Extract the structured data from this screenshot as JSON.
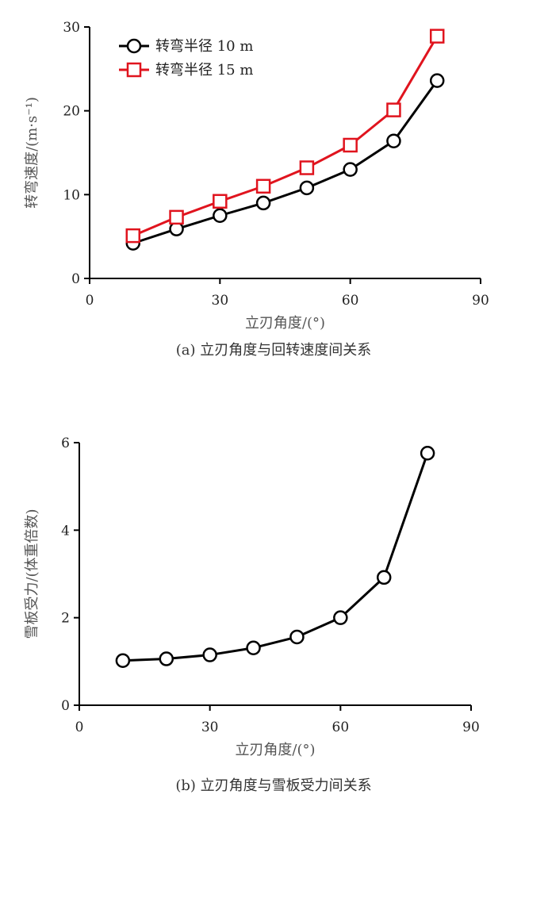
{
  "chart_data": [
    {
      "type": "line",
      "caption": "(a) 立刃角度与回转速度间关系",
      "xlabel": "立刃角度/(°)",
      "ylabel": "转弯速度/(m·s⁻¹)",
      "xlim": [
        0,
        90
      ],
      "ylim": [
        0,
        30
      ],
      "xticks": [
        0,
        30,
        60,
        90
      ],
      "yticks": [
        0,
        10,
        20,
        30
      ],
      "grid": false,
      "legend_position": "top-left",
      "series": [
        {
          "name": "转弯半径 10 m",
          "color": "#000000",
          "marker": "circle",
          "x": [
            10,
            20,
            30,
            40,
            50,
            60,
            70,
            80
          ],
          "y": [
            4.2,
            5.9,
            7.5,
            9.0,
            10.8,
            13.0,
            16.4,
            23.6
          ]
        },
        {
          "name": "转弯半径 15 m",
          "color": "#e0141e",
          "marker": "square",
          "x": [
            10,
            20,
            30,
            40,
            50,
            60,
            70,
            80
          ],
          "y": [
            5.1,
            7.3,
            9.2,
            11.0,
            13.2,
            15.9,
            20.1,
            28.9
          ]
        }
      ]
    },
    {
      "type": "line",
      "caption": "(b) 立刃角度与雪板受力间关系",
      "xlabel": "立刃角度/(°)",
      "ylabel": "雪板受力/(体重倍数)",
      "xlim": [
        0,
        90
      ],
      "ylim": [
        0,
        6
      ],
      "xticks": [
        0,
        30,
        60,
        90
      ],
      "yticks": [
        0,
        2,
        4,
        6
      ],
      "grid": false,
      "series": [
        {
          "color": "#000000",
          "marker": "circle",
          "x": [
            10,
            20,
            30,
            40,
            50,
            60,
            70,
            80
          ],
          "y": [
            1.02,
            1.06,
            1.15,
            1.31,
            1.56,
            2.0,
            2.92,
            5.76
          ]
        }
      ]
    }
  ]
}
